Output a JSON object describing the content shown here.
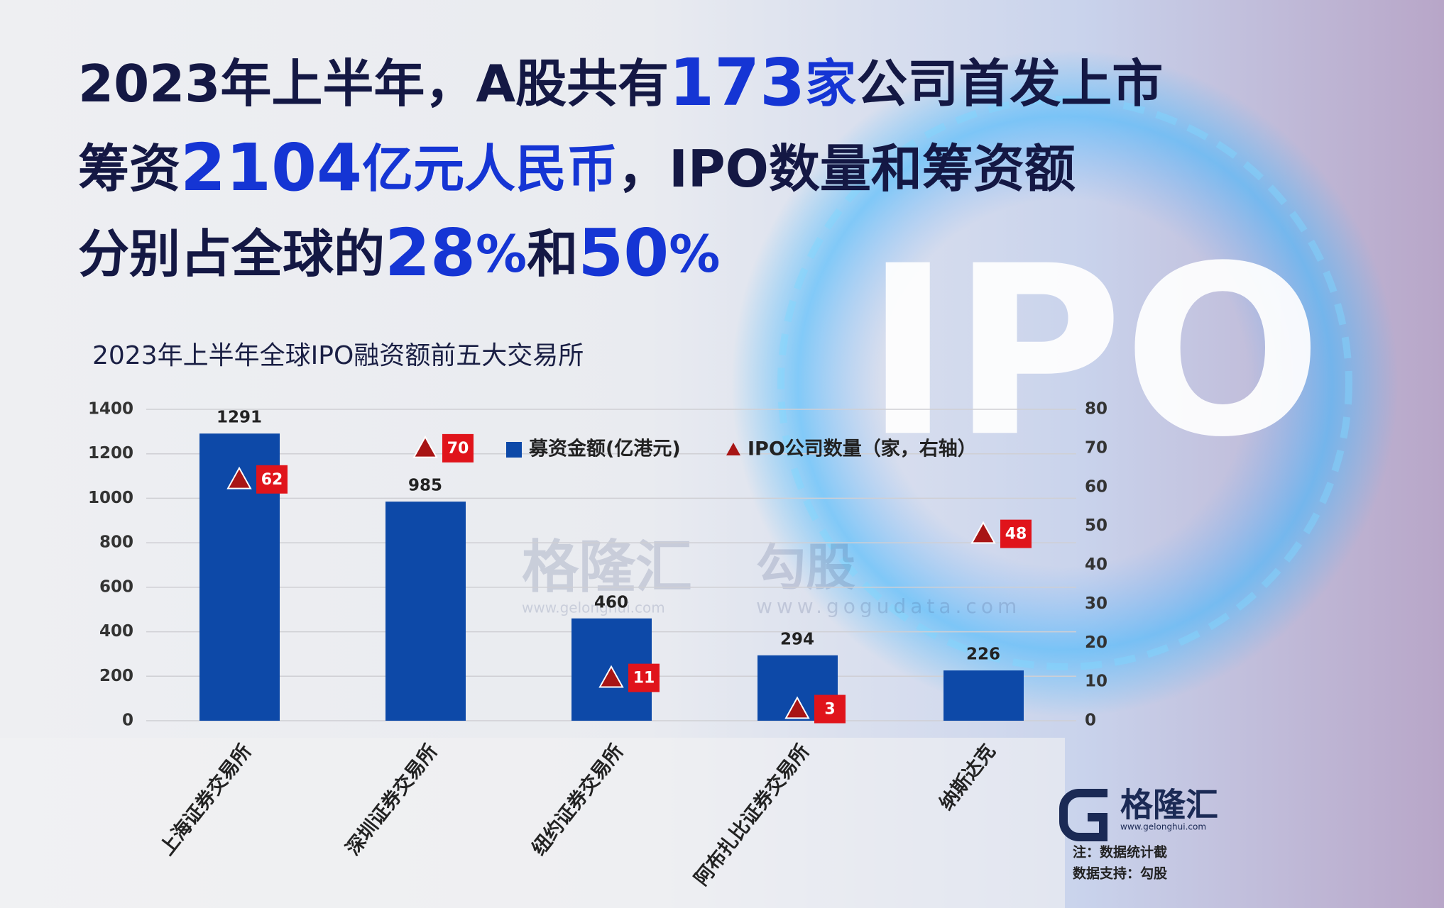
{
  "headline": {
    "lines": [
      [
        {
          "text": "2023年上半年，A股共有",
          "color": "#141844"
        },
        {
          "text": "173",
          "color": "#1535d4"
        },
        {
          "text": "家",
          "color": "#1535d4"
        },
        {
          "text": "公司首发上市",
          "color": "#141844"
        }
      ],
      [
        {
          "text": "筹资",
          "color": "#141844"
        },
        {
          "text": "2104",
          "color": "#1535d4"
        },
        {
          "text": "亿元人民币",
          "color": "#1535d4"
        },
        {
          "text": "，IPO数量和筹资额",
          "color": "#141844"
        }
      ],
      [
        {
          "text": "分别占全球的",
          "color": "#141844"
        },
        {
          "text": "28",
          "color": "#1535d4"
        },
        {
          "text": "%",
          "color": "#1535d4"
        },
        {
          "text": "和",
          "color": "#141844"
        },
        {
          "text": "50",
          "color": "#1535d4"
        },
        {
          "text": "%",
          "color": "#1535d4"
        }
      ]
    ]
  },
  "background_text": "IPO",
  "watermarks": [
    {
      "name": "格隆汇",
      "url": "www.gelonghui.com"
    },
    {
      "name": "勾股",
      "url": "www.gogudata.com"
    }
  ],
  "logo": {
    "name": "格隆汇",
    "url": "www.gelonghui.com"
  },
  "notes": [
    "注：数据统计截",
    "数据支持：勾股"
  ],
  "chart_data": {
    "type": "bar",
    "title": "2023年上半年全球IPO融资额前五大交易所",
    "categories": [
      "上海证券交易所",
      "深圳证券交易所",
      "纽约证券交易所",
      "阿布扎比证券交易所",
      "纳斯达克"
    ],
    "series": [
      {
        "name": "募资金额(亿港元)",
        "color": "#0d49a8",
        "values": [
          1291,
          985,
          460,
          294,
          226
        ]
      },
      {
        "name": "IPO公司数量（家，右轴）",
        "color": "#a81515",
        "axis": "y2",
        "marker": "triangle",
        "values": [
          62,
          70,
          11,
          3,
          48
        ]
      }
    ],
    "ylim": [
      0,
      1400
    ],
    "yticks": [
      0,
      200,
      400,
      600,
      800,
      1000,
      1200,
      1400
    ],
    "y2lim": [
      0,
      80
    ],
    "y2ticks": [
      0,
      10,
      20,
      30,
      40,
      50,
      60,
      70,
      80
    ],
    "grid": true
  }
}
